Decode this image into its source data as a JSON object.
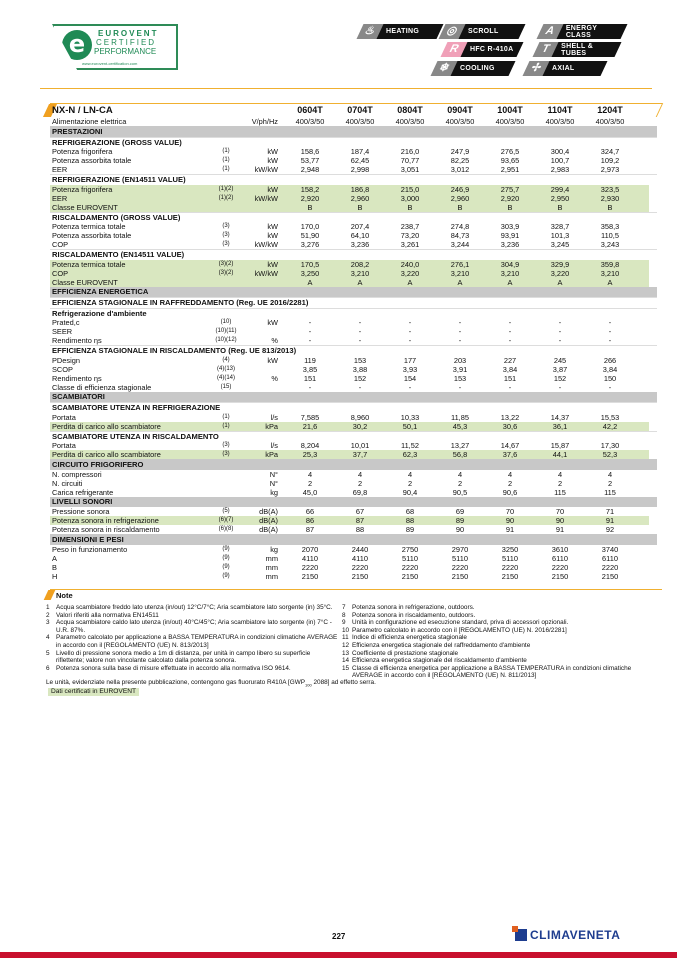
{
  "logo": {
    "line1": "EUROVENT",
    "line2": "CERTIFIED",
    "line3": "PERFORMANCE",
    "url": "www.eurovent-certification.com"
  },
  "badges": [
    {
      "label": "HEATING",
      "icon": "flame-icon",
      "glyph": "♨"
    },
    {
      "label": "SCROLL",
      "icon": "scroll-icon",
      "glyph": "◎"
    },
    {
      "label": "ENERGY CLASS",
      "icon": "energy-class-icon",
      "glyph": "A"
    },
    {
      "label": "HFC R-410A",
      "icon": "refrigerant-icon",
      "glyph": "R"
    },
    {
      "label": "SHELL & TUBES",
      "icon": "shell-tubes-icon",
      "glyph": "T"
    },
    {
      "label": "COOLING",
      "icon": "snowflake-icon",
      "glyph": "❄"
    },
    {
      "label": "AXIAL",
      "icon": "fan-icon",
      "glyph": "✢"
    }
  ],
  "table": {
    "model": "NX-N / LN-CA",
    "columns": [
      "0604T",
      "0704T",
      "0804T",
      "0904T",
      "1004T",
      "1104T",
      "1204T"
    ],
    "rows": [
      {
        "t": "d",
        "label": "Alimentazione elettrica",
        "note": "",
        "unit": "V/ph/Hz",
        "v": [
          "400/3/50",
          "400/3/50",
          "400/3/50",
          "400/3/50",
          "400/3/50",
          "400/3/50",
          "400/3/50"
        ]
      },
      {
        "t": "sec",
        "label": "PRESTAZIONI"
      },
      {
        "t": "sub",
        "label": "REFRIGERAZIONE (GROSS VALUE)"
      },
      {
        "t": "d",
        "label": "Potenza frigorifera",
        "note": "(1)",
        "unit": "kW",
        "v": [
          "158,6",
          "187,4",
          "216,0",
          "247,9",
          "276,5",
          "300,4",
          "324,7"
        ]
      },
      {
        "t": "d",
        "label": "Potenza assorbita totale",
        "note": "(1)",
        "unit": "kW",
        "v": [
          "53,77",
          "62,45",
          "70,77",
          "82,25",
          "93,65",
          "100,7",
          "109,2"
        ]
      },
      {
        "t": "d",
        "label": "EER",
        "note": "(1)",
        "unit": "kW/kW",
        "v": [
          "2,948",
          "2,998",
          "3,051",
          "3,012",
          "2,951",
          "2,983",
          "2,973"
        ]
      },
      {
        "t": "sub",
        "label": "REFRIGERAZIONE (EN14511 VALUE)"
      },
      {
        "t": "g",
        "label": "Potenza frigorifera",
        "note": "(1)(2)",
        "unit": "kW",
        "v": [
          "158,2",
          "186,8",
          "215,0",
          "246,9",
          "275,7",
          "299,4",
          "323,5"
        ]
      },
      {
        "t": "g",
        "label": "EER",
        "note": "(1)(2)",
        "unit": "kW/kW",
        "v": [
          "2,920",
          "2,960",
          "3,000",
          "2,960",
          "2,920",
          "2,950",
          "2,930"
        ]
      },
      {
        "t": "g",
        "label": "Classe EUROVENT",
        "note": "",
        "unit": "",
        "v": [
          "B",
          "B",
          "B",
          "B",
          "B",
          "B",
          "B"
        ]
      },
      {
        "t": "sub",
        "label": "RISCALDAMENTO (GROSS VALUE)"
      },
      {
        "t": "d",
        "label": "Potenza termica totale",
        "note": "(3)",
        "unit": "kW",
        "v": [
          "170,0",
          "207,4",
          "238,7",
          "274,8",
          "303,9",
          "328,7",
          "358,3"
        ]
      },
      {
        "t": "d",
        "label": "Potenza assorbita totale",
        "note": "(3)",
        "unit": "kW",
        "v": [
          "51,90",
          "64,10",
          "73,20",
          "84,73",
          "93,91",
          "101,3",
          "110,5"
        ]
      },
      {
        "t": "d",
        "label": "COP",
        "note": "(3)",
        "unit": "kW/kW",
        "v": [
          "3,276",
          "3,236",
          "3,261",
          "3,244",
          "3,236",
          "3,245",
          "3,243"
        ]
      },
      {
        "t": "sub",
        "label": "RISCALDAMENTO (EN14511 VALUE)"
      },
      {
        "t": "g",
        "label": "Potenza termica totale",
        "note": "(3)(2)",
        "unit": "kW",
        "v": [
          "170,5",
          "208,2",
          "240,0",
          "276,1",
          "304,9",
          "329,9",
          "359,8"
        ]
      },
      {
        "t": "g",
        "label": "COP",
        "note": "(3)(2)",
        "unit": "kW/kW",
        "v": [
          "3,250",
          "3,210",
          "3,220",
          "3,210",
          "3,210",
          "3,220",
          "3,210"
        ]
      },
      {
        "t": "g",
        "label": "Classe EUROVENT",
        "note": "",
        "unit": "",
        "v": [
          "A",
          "A",
          "A",
          "A",
          "A",
          "A",
          "A"
        ]
      },
      {
        "t": "sec",
        "label": "EFFICIENZA ENERGETICA"
      },
      {
        "t": "sub",
        "label": "EFFICIENZA STAGIONALE IN RAFFREDDAMENTO (Reg. UE 2016/2281)"
      },
      {
        "t": "sub",
        "label": "Refrigerazione d'ambiente"
      },
      {
        "t": "d",
        "label": "Prated,c",
        "note": "(10)",
        "unit": "kW",
        "v": [
          "-",
          "-",
          "-",
          "-",
          "-",
          "-",
          "-"
        ]
      },
      {
        "t": "d",
        "label": "SEER",
        "note": "(10)(11)",
        "unit": "",
        "v": [
          "-",
          "-",
          "-",
          "-",
          "-",
          "-",
          "-"
        ]
      },
      {
        "t": "d",
        "label": "Rendimento ηs",
        "note": "(10)(12)",
        "unit": "%",
        "v": [
          "-",
          "-",
          "-",
          "-",
          "-",
          "-",
          "-"
        ]
      },
      {
        "t": "sub",
        "label": "EFFICIENZA STAGIONALE IN RISCALDAMENTO  (Reg. UE 813/2013)"
      },
      {
        "t": "d",
        "label": "PDesign",
        "note": "(4)",
        "unit": "kW",
        "v": [
          "119",
          "153",
          "177",
          "203",
          "227",
          "245",
          "266"
        ]
      },
      {
        "t": "d",
        "label": "SCOP",
        "note": "(4)(13)",
        "unit": "",
        "v": [
          "3,85",
          "3,88",
          "3,93",
          "3,91",
          "3,84",
          "3,87",
          "3,84"
        ]
      },
      {
        "t": "d",
        "label": "Rendimento ηs",
        "note": "(4)(14)",
        "unit": "%",
        "v": [
          "151",
          "152",
          "154",
          "153",
          "151",
          "152",
          "150"
        ]
      },
      {
        "t": "d",
        "label": "Classe di efficienza stagionale",
        "note": "(15)",
        "unit": "",
        "v": [
          "-",
          "-",
          "-",
          "-",
          "-",
          "-",
          "-"
        ]
      },
      {
        "t": "sec",
        "label": "SCAMBIATORI"
      },
      {
        "t": "sub",
        "label": "SCAMBIATORE UTENZA IN REFRIGERAZIONE"
      },
      {
        "t": "d",
        "label": "Portata",
        "note": "(1)",
        "unit": "l/s",
        "v": [
          "7,585",
          "8,960",
          "10,33",
          "11,85",
          "13,22",
          "14,37",
          "15,53"
        ]
      },
      {
        "t": "g",
        "label": "Perdita di carico allo scambiatore",
        "note": "(1)",
        "unit": "kPa",
        "v": [
          "21,6",
          "30,2",
          "50,1",
          "45,3",
          "30,6",
          "36,1",
          "42,2"
        ]
      },
      {
        "t": "sub",
        "label": "SCAMBIATORE UTENZA IN RISCALDAMENTO"
      },
      {
        "t": "d",
        "label": "Portata",
        "note": "(3)",
        "unit": "l/s",
        "v": [
          "8,204",
          "10,01",
          "11,52",
          "13,27",
          "14,67",
          "15,87",
          "17,30"
        ]
      },
      {
        "t": "g",
        "label": "Perdita di carico allo scambiatore",
        "note": "(3)",
        "unit": "kPa",
        "v": [
          "25,3",
          "37,7",
          "62,3",
          "56,8",
          "37,6",
          "44,1",
          "52,3"
        ]
      },
      {
        "t": "sec",
        "label": "CIRCUITO FRIGORIFERO"
      },
      {
        "t": "d",
        "label": "N. compressori",
        "note": "",
        "unit": "N°",
        "v": [
          "4",
          "4",
          "4",
          "4",
          "4",
          "4",
          "4"
        ]
      },
      {
        "t": "d",
        "label": "N. circuiti",
        "note": "",
        "unit": "N°",
        "v": [
          "2",
          "2",
          "2",
          "2",
          "2",
          "2",
          "2"
        ]
      },
      {
        "t": "d",
        "label": "Carica refrigerante",
        "note": "",
        "unit": "kg",
        "v": [
          "45,0",
          "69,8",
          "90,4",
          "90,5",
          "90,6",
          "115",
          "115"
        ]
      },
      {
        "t": "sec",
        "label": "LIVELLI SONORI"
      },
      {
        "t": "d",
        "label": "Pressione sonora",
        "note": "(5)",
        "unit": "dB(A)",
        "v": [
          "66",
          "67",
          "68",
          "69",
          "70",
          "70",
          "71"
        ]
      },
      {
        "t": "g",
        "label": "Potenza sonora in refrigerazione",
        "note": "(6)(7)",
        "unit": "dB(A)",
        "v": [
          "86",
          "87",
          "88",
          "89",
          "90",
          "90",
          "91"
        ]
      },
      {
        "t": "d",
        "label": "Potenza sonora in riscaldamento",
        "note": "(6)(8)",
        "unit": "dB(A)",
        "v": [
          "87",
          "88",
          "89",
          "90",
          "91",
          "91",
          "92"
        ]
      },
      {
        "t": "sec",
        "label": "DIMENSIONI E PESI"
      },
      {
        "t": "d",
        "label": "Peso in funzionamento",
        "note": "(9)",
        "unit": "kg",
        "v": [
          "2070",
          "2440",
          "2750",
          "2970",
          "3250",
          "3610",
          "3740"
        ]
      },
      {
        "t": "d",
        "label": "A",
        "note": "(9)",
        "unit": "mm",
        "v": [
          "4110",
          "4110",
          "5110",
          "5110",
          "5110",
          "6110",
          "6110"
        ]
      },
      {
        "t": "d",
        "label": "B",
        "note": "(9)",
        "unit": "mm",
        "v": [
          "2220",
          "2220",
          "2220",
          "2220",
          "2220",
          "2220",
          "2220"
        ]
      },
      {
        "t": "d",
        "label": "H",
        "note": "(9)",
        "unit": "mm",
        "v": [
          "2150",
          "2150",
          "2150",
          "2150",
          "2150",
          "2150",
          "2150"
        ]
      }
    ]
  },
  "notes": {
    "title": "Note",
    "left": [
      {
        "n": "1",
        "text": "Acqua scambiatore freddo lato utenza (in/out) 12°C/7°C; Aria scambiatore lato sorgente (in) 35°C."
      },
      {
        "n": "2",
        "text": "Valori riferiti alla normativa EN14511"
      },
      {
        "n": "3",
        "text": "Acqua scambiatore caldo lato utenza (in/out) 40°C/45°C; Aria scambiatore lato sorgente (in) 7°C - U.R. 87%."
      },
      {
        "n": "4",
        "text": "Parametro calcolato per applicazione a BASSA TEMPERATURA in condizioni climatiche AVERAGE in accordo con il [REGOLAMENTO (UE) N. 813/2013]"
      },
      {
        "n": "5",
        "text": "Livello di pressione sonora medio a 1m di distanza, per unità in campo libero su superficie riflettente; valore non vincolante calcolato dalla potenza sonora."
      },
      {
        "n": "6",
        "text": "Potenza sonora sulla base di misure effettuate in accordo alla normativa ISO 9614."
      }
    ],
    "right": [
      {
        "n": "7",
        "text": "Potenza sonora in refrigerazione, outdoors."
      },
      {
        "n": "8",
        "text": "Potenza sonora in riscaldamento, outdoors."
      },
      {
        "n": "9",
        "text": "Unità in configurazione ed esecuzione standard, priva di accessori opzionali."
      },
      {
        "n": "10",
        "text": "Parametro calcolato in accordo con il [REGOLAMENTO (UE) N. 2016/2281]"
      },
      {
        "n": "11",
        "text": "Indice di efficienza energetica stagionale"
      },
      {
        "n": "12",
        "text": "Efficienza energetica stagionale del raffreddamento d'ambiente"
      },
      {
        "n": "13",
        "text": "Coefficiente di prestazione stagionale"
      },
      {
        "n": "14",
        "text": "Efficienza energetica stagionale del riscaldamento d'ambiente"
      },
      {
        "n": "15",
        "text": "Classe di efficienza energetica per applicazione a BASSA TEMPERATURA in condizioni climatiche AVERAGE in accordo con il [REGOLAMENTO (UE) N. 811/2013]"
      }
    ],
    "gas_pre": "Le unità, evidenziate nella presente pubblicazione, contengono gas fluorurato  R410A [GWP",
    "gas_sub": "100",
    "gas_post": " 2088] ad effetto serra.",
    "certified": "Dati certificati in EUROVENT"
  },
  "footer": {
    "page": "227",
    "brand": "CLIMAVENETA"
  },
  "colors": {
    "accent": "#f0a020",
    "green_row": "#d9e7c0",
    "section": "#c8c8c8",
    "brand_blue": "#1e3d8f",
    "red_bar": "#c8102e"
  }
}
